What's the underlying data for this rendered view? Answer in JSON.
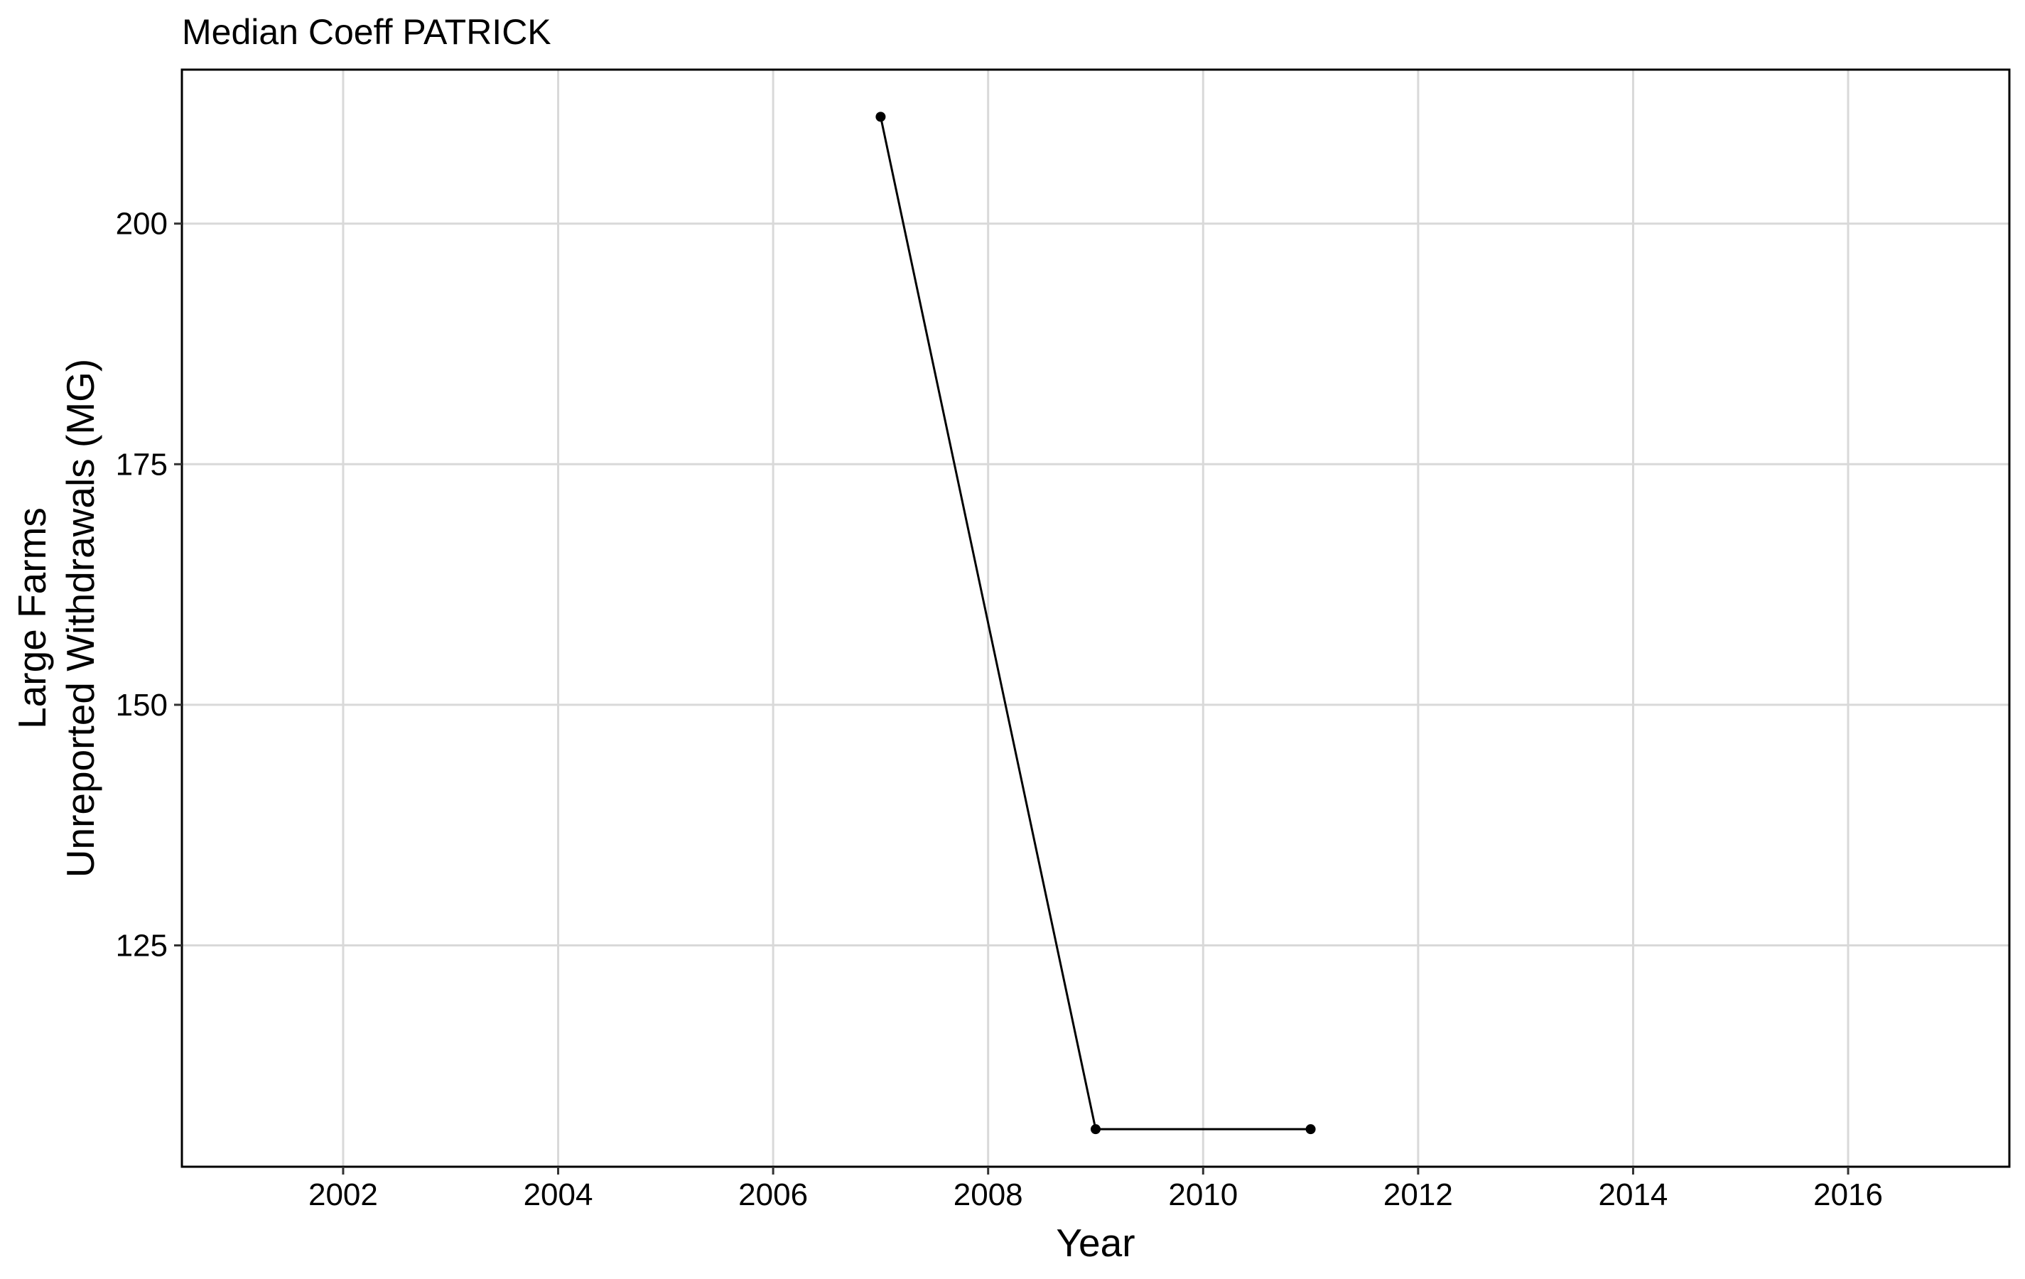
{
  "chart_data": {
    "type": "line",
    "title": "Median Coeff PATRICK",
    "xlabel": "Year",
    "ylabel": [
      "Large Farms",
      "Unreported Withdrawals (MG)"
    ],
    "xlim": [
      2000.5,
      2017.5
    ],
    "ylim": [
      102,
      216
    ],
    "x_ticks": [
      2002,
      2004,
      2006,
      2008,
      2010,
      2012,
      2014,
      2016
    ],
    "y_ticks": [
      125,
      150,
      175,
      200
    ],
    "grid": true,
    "series": [
      {
        "x": [
          2007,
          2009,
          2011
        ],
        "y": [
          211.1,
          105.9,
          105.9
        ]
      }
    ],
    "colors": {
      "line": "#000000",
      "grid": "#d9d9d9",
      "panel_border": "#000000"
    }
  }
}
